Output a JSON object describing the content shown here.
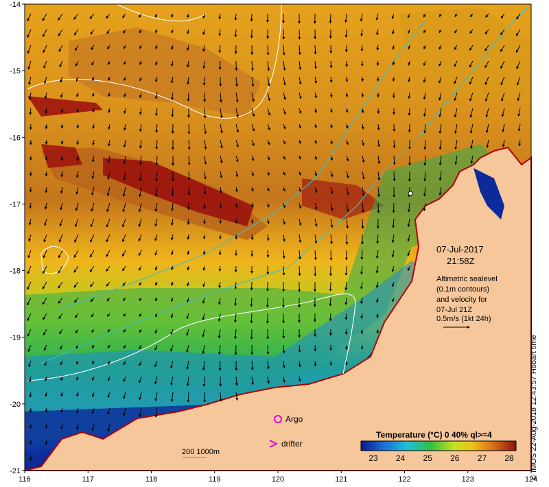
{
  "map": {
    "x_ticks": [
      "116",
      "117",
      "118",
      "119",
      "120",
      "121",
      "122",
      "123",
      "124"
    ],
    "y_ticks": [
      "-14",
      "-15",
      "-16",
      "-17",
      "-18",
      "-19",
      "-20",
      "-21"
    ]
  },
  "annotations": {
    "date": "07-Jul-2017",
    "time": "21:58Z",
    "altimetry_lines": [
      "Altimetric sealevel",
      "(0.1m contours)",
      "and velocity for",
      "07-Jul 21Z",
      "0.5m/s (1kt 24h)"
    ]
  },
  "legend": {
    "argo_label": "Argo",
    "drifter_label": "drifter",
    "depth_label": "200  1000m",
    "colorbar_title": "Temperature (°C) 0 40% ql>=4",
    "colorbar_ticks": [
      "23",
      "24",
      "25",
      "26",
      "27",
      "28"
    ],
    "colors": {
      "land": "#f6c79a",
      "coast": "#b00000",
      "bathy": "#3fbfbf",
      "contour": "#ffffff",
      "argo": "#e000e0"
    }
  },
  "credit": "© IMOS 22-Aug-2018 12:43:57 Hobart time"
}
